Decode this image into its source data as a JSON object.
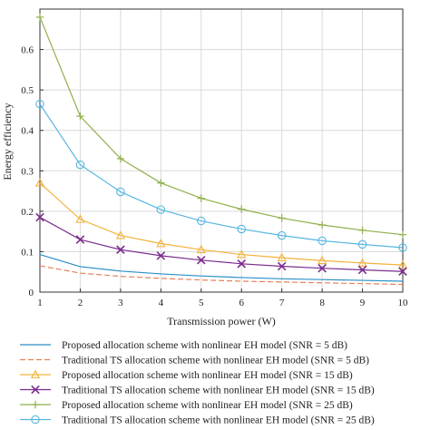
{
  "chart_data": {
    "type": "line",
    "xlabel": "Transmission power (W)",
    "ylabel": "Energy efficiency",
    "xlim": [
      1,
      10
    ],
    "ylim": [
      0,
      0.7
    ],
    "xticks": [
      1,
      2,
      3,
      4,
      5,
      6,
      7,
      8,
      9,
      10
    ],
    "yticks": [
      0,
      0.1,
      0.2,
      0.3,
      0.4,
      0.5,
      0.6
    ],
    "x": [
      1,
      2,
      3,
      4,
      5,
      6,
      7,
      8,
      9,
      10
    ],
    "legend_position": "bottom",
    "series": [
      {
        "name": "Proposed allocation scheme with nonlinear EH model (SNR = 5 dB)",
        "color": "#2a8fc8",
        "dash": "solid",
        "marker": "none",
        "values": [
          0.093,
          0.063,
          0.052,
          0.045,
          0.04,
          0.036,
          0.033,
          0.031,
          0.029,
          0.027
        ]
      },
      {
        "name": "Traditional TS allocation scheme with nonlinear EH model (SNR = 5 dB)",
        "color": "#e8805a",
        "dash": "dashed",
        "marker": "none",
        "values": [
          0.065,
          0.047,
          0.039,
          0.034,
          0.03,
          0.027,
          0.025,
          0.023,
          0.021,
          0.019
        ]
      },
      {
        "name": "Proposed allocation scheme with nonlinear EH model (SNR = 15 dB)",
        "color": "#f2b33a",
        "dash": "solid",
        "marker": "triangle",
        "values": [
          0.27,
          0.18,
          0.14,
          0.12,
          0.105,
          0.093,
          0.085,
          0.078,
          0.072,
          0.067
        ]
      },
      {
        "name": "Traditional TS allocation scheme with nonlinear EH model (SNR = 15 dB)",
        "color": "#7b2c8e",
        "dash": "solid",
        "marker": "x",
        "values": [
          0.185,
          0.13,
          0.105,
          0.09,
          0.079,
          0.07,
          0.064,
          0.059,
          0.055,
          0.051
        ]
      },
      {
        "name": "Proposed allocation scheme with nonlinear EH model (SNR = 25 dB)",
        "color": "#8fb04a",
        "dash": "solid",
        "marker": "plus",
        "values": [
          0.68,
          0.435,
          0.33,
          0.27,
          0.232,
          0.205,
          0.183,
          0.166,
          0.153,
          0.142
        ]
      },
      {
        "name": "Traditional TS allocation scheme with nonlinear EH model (SNR = 25 dB)",
        "color": "#58b7e2",
        "dash": "solid",
        "marker": "circle",
        "values": [
          0.465,
          0.315,
          0.248,
          0.204,
          0.176,
          0.156,
          0.14,
          0.127,
          0.118,
          0.11
        ]
      }
    ]
  }
}
